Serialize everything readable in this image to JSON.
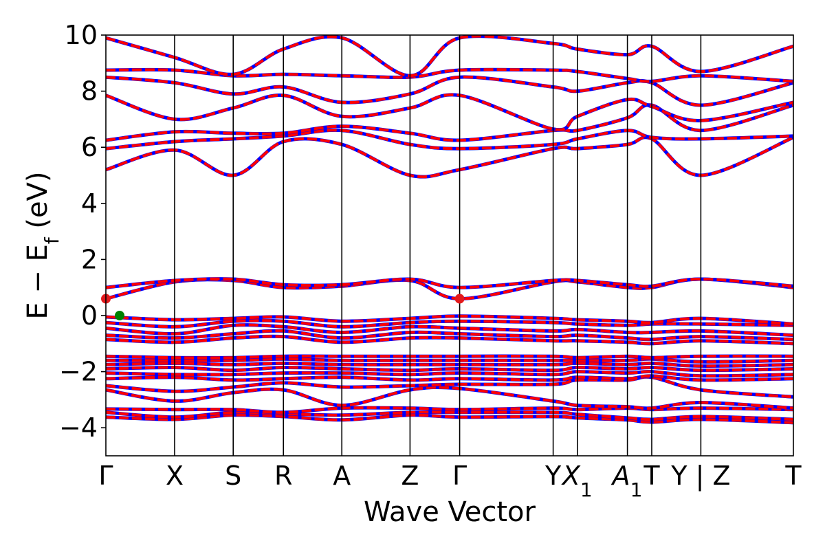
{
  "chart_data": {
    "type": "line",
    "xlabel": "Wave Vector",
    "ylabel": "E − E_f (eV)",
    "ylabel_parts": {
      "main": "E − E",
      "sub": "f",
      "unit": " (eV)"
    },
    "ylim": [
      -5,
      10
    ],
    "yticks": [
      -4,
      -2,
      0,
      2,
      4,
      6,
      8,
      10
    ],
    "ytick_labels": [
      "−4",
      "−2",
      "0",
      "2",
      "4",
      "6",
      "8",
      "10"
    ],
    "grid": false,
    "high_symmetry_points": [
      {
        "label": "Γ",
        "x": 0.0
      },
      {
        "label": "X",
        "x": 0.5
      },
      {
        "label": "S",
        "x": 0.926
      },
      {
        "label": "R",
        "x": 1.291
      },
      {
        "label": "A",
        "x": 1.716
      },
      {
        "label": "Z",
        "x": 2.212
      },
      {
        "label": "Γ",
        "x": 2.573
      },
      {
        "label": "Y",
        "x": 3.253
      },
      {
        "label": "X",
        "sub": "1",
        "x": 3.429
      },
      {
        "label": "A",
        "sub": "1",
        "x": 3.793
      },
      {
        "label": "T",
        "x": 3.97
      },
      {
        "label": "Y | Z",
        "x": 4.327
      },
      {
        "label": "T",
        "x": 5.0
      }
    ],
    "series_colors": {
      "spin_up": "#ff0000",
      "spin_down": "#0000ff"
    },
    "markers": [
      {
        "name": "CBM",
        "x": 0.0,
        "y": 0.6,
        "color": "#e31a1c"
      },
      {
        "name": "CBM",
        "x": 2.573,
        "y": 0.6,
        "color": "#e31a1c"
      },
      {
        "name": "VBM",
        "x": 0.1,
        "y": 0.0,
        "color": "#008000"
      }
    ],
    "bands": [
      [
        [
          0,
          -3.62
        ],
        [
          0.5,
          -3.7
        ],
        [
          0.926,
          -3.55
        ],
        [
          1.291,
          -3.6
        ],
        [
          1.716,
          -3.72
        ],
        [
          2.212,
          -3.55
        ],
        [
          2.573,
          -3.62
        ],
        [
          3.253,
          -3.6
        ],
        [
          3.429,
          -3.65
        ],
        [
          3.793,
          -3.72
        ],
        [
          3.97,
          -3.8
        ],
        [
          4.327,
          -3.7
        ],
        [
          5.0,
          -3.82
        ]
      ],
      [
        [
          0,
          -3.45
        ],
        [
          0.5,
          -3.62
        ],
        [
          0.926,
          -3.45
        ],
        [
          1.291,
          -3.5
        ],
        [
          1.716,
          -3.55
        ],
        [
          2.212,
          -3.45
        ],
        [
          2.573,
          -3.45
        ],
        [
          3.253,
          -3.45
        ],
        [
          3.429,
          -3.52
        ],
        [
          3.793,
          -3.65
        ],
        [
          3.97,
          -3.7
        ],
        [
          4.327,
          -3.6
        ],
        [
          5.0,
          -3.7
        ]
      ],
      [
        [
          0,
          -3.33
        ],
        [
          0.5,
          -3.35
        ],
        [
          0.926,
          -3.35
        ],
        [
          1.291,
          -3.45
        ],
        [
          1.716,
          -3.3
        ],
        [
          2.212,
          -3.3
        ],
        [
          2.573,
          -3.35
        ],
        [
          3.253,
          -3.3
        ],
        [
          3.429,
          -3.35
        ],
        [
          3.793,
          -3.3
        ],
        [
          3.97,
          -3.35
        ],
        [
          4.327,
          -3.3
        ],
        [
          5.0,
          -3.35
        ]
      ],
      [
        [
          0,
          -2.65
        ],
        [
          0.5,
          -3.05
        ],
        [
          0.926,
          -2.75
        ],
        [
          1.291,
          -2.65
        ],
        [
          1.716,
          -3.2
        ],
        [
          2.212,
          -2.65
        ],
        [
          2.573,
          -2.6
        ],
        [
          3.253,
          -3.05
        ],
        [
          3.429,
          -3.2
        ],
        [
          3.793,
          -3.25
        ],
        [
          3.97,
          -3.3
        ],
        [
          4.327,
          -3.1
        ],
        [
          5.0,
          -3.3
        ]
      ],
      [
        [
          0,
          -2.5
        ],
        [
          0.5,
          -2.7
        ],
        [
          0.926,
          -2.55
        ],
        [
          1.291,
          -2.4
        ],
        [
          1.716,
          -2.55
        ],
        [
          2.212,
          -2.5
        ],
        [
          2.573,
          -2.45
        ],
        [
          3.253,
          -2.45
        ],
        [
          3.429,
          -2.3
        ],
        [
          3.793,
          -2.3
        ],
        [
          3.97,
          -2.2
        ],
        [
          4.327,
          -2.65
        ],
        [
          5.0,
          -2.9
        ]
      ],
      [
        [
          0,
          -2.25
        ],
        [
          0.5,
          -2.2
        ],
        [
          0.926,
          -2.3
        ],
        [
          1.291,
          -2.25
        ],
        [
          1.716,
          -2.2
        ],
        [
          2.212,
          -2.3
        ],
        [
          2.573,
          -2.25
        ],
        [
          3.253,
          -2.3
        ],
        [
          3.429,
          -2.2
        ],
        [
          3.793,
          -2.25
        ],
        [
          3.97,
          -2.15
        ],
        [
          4.327,
          -2.3
        ],
        [
          5.0,
          -2.25
        ]
      ],
      [
        [
          0,
          -2.05
        ],
        [
          0.5,
          -2.1
        ],
        [
          0.926,
          -2.1
        ],
        [
          1.291,
          -2.05
        ],
        [
          1.716,
          -2.05
        ],
        [
          2.212,
          -2.1
        ],
        [
          2.573,
          -2.05
        ],
        [
          3.253,
          -2.1
        ],
        [
          3.429,
          -2.0
        ],
        [
          3.793,
          -2.05
        ],
        [
          3.97,
          -2.0
        ],
        [
          4.327,
          -2.15
        ],
        [
          5.0,
          -2.1
        ]
      ],
      [
        [
          0,
          -1.9
        ],
        [
          0.5,
          -1.85
        ],
        [
          0.926,
          -1.95
        ],
        [
          1.291,
          -1.85
        ],
        [
          1.716,
          -1.9
        ],
        [
          2.212,
          -1.95
        ],
        [
          2.573,
          -1.9
        ],
        [
          3.253,
          -1.95
        ],
        [
          3.429,
          -1.85
        ],
        [
          3.793,
          -1.9
        ],
        [
          3.97,
          -1.85
        ],
        [
          4.327,
          -1.95
        ],
        [
          5.0,
          -1.9
        ]
      ],
      [
        [
          0,
          -1.75
        ],
        [
          0.5,
          -1.7
        ],
        [
          0.926,
          -1.75
        ],
        [
          1.291,
          -1.7
        ],
        [
          1.716,
          -1.75
        ],
        [
          2.212,
          -1.75
        ],
        [
          2.573,
          -1.75
        ],
        [
          3.253,
          -1.75
        ],
        [
          3.429,
          -1.7
        ],
        [
          3.793,
          -1.75
        ],
        [
          3.97,
          -1.7
        ],
        [
          4.327,
          -1.8
        ],
        [
          5.0,
          -1.75
        ]
      ],
      [
        [
          0,
          -1.6
        ],
        [
          0.5,
          -1.6
        ],
        [
          0.926,
          -1.6
        ],
        [
          1.291,
          -1.55
        ],
        [
          1.716,
          -1.6
        ],
        [
          2.212,
          -1.6
        ],
        [
          2.573,
          -1.6
        ],
        [
          3.253,
          -1.6
        ],
        [
          3.429,
          -1.6
        ],
        [
          3.793,
          -1.6
        ],
        [
          3.97,
          -1.55
        ],
        [
          4.327,
          -1.65
        ],
        [
          5.0,
          -1.6
        ]
      ],
      [
        [
          0,
          -1.45
        ],
        [
          0.5,
          -1.5
        ],
        [
          0.926,
          -1.5
        ],
        [
          1.291,
          -1.45
        ],
        [
          1.716,
          -1.45
        ],
        [
          2.212,
          -1.45
        ],
        [
          2.573,
          -1.45
        ],
        [
          3.253,
          -1.45
        ],
        [
          3.429,
          -1.5
        ],
        [
          3.793,
          -1.45
        ],
        [
          3.97,
          -1.5
        ],
        [
          4.327,
          -1.45
        ],
        [
          5.0,
          -1.45
        ]
      ],
      [
        [
          0,
          -0.85
        ],
        [
          0.5,
          -0.95
        ],
        [
          0.926,
          -0.8
        ],
        [
          1.291,
          -0.75
        ],
        [
          1.716,
          -0.95
        ],
        [
          2.212,
          -0.8
        ],
        [
          2.573,
          -0.8
        ],
        [
          3.253,
          -0.9
        ],
        [
          3.429,
          -0.9
        ],
        [
          3.793,
          -0.95
        ],
        [
          3.97,
          -1.0
        ],
        [
          4.327,
          -0.9
        ],
        [
          5.0,
          -1.0
        ]
      ],
      [
        [
          0,
          -0.7
        ],
        [
          0.5,
          -0.8
        ],
        [
          0.926,
          -0.65
        ],
        [
          1.291,
          -0.55
        ],
        [
          1.716,
          -0.8
        ],
        [
          2.212,
          -0.6
        ],
        [
          2.573,
          -0.65
        ],
        [
          3.253,
          -0.75
        ],
        [
          3.429,
          -0.7
        ],
        [
          3.793,
          -0.8
        ],
        [
          3.97,
          -0.85
        ],
        [
          4.327,
          -0.75
        ],
        [
          5.0,
          -0.85
        ]
      ],
      [
        [
          0,
          -0.45
        ],
        [
          0.5,
          -0.65
        ],
        [
          0.926,
          -0.35
        ],
        [
          1.291,
          -0.4
        ],
        [
          1.716,
          -0.6
        ],
        [
          2.212,
          -0.4
        ],
        [
          2.573,
          -0.45
        ],
        [
          3.253,
          -0.55
        ],
        [
          3.429,
          -0.5
        ],
        [
          3.793,
          -0.6
        ],
        [
          3.97,
          -0.6
        ],
        [
          4.327,
          -0.55
        ],
        [
          5.0,
          -0.7
        ]
      ],
      [
        [
          0,
          -0.25
        ],
        [
          0.5,
          -0.4
        ],
        [
          0.926,
          -0.2
        ],
        [
          1.291,
          -0.2
        ],
        [
          1.716,
          -0.4
        ],
        [
          2.212,
          -0.25
        ],
        [
          2.573,
          -0.2
        ],
        [
          3.253,
          -0.25
        ],
        [
          3.429,
          -0.3
        ],
        [
          3.793,
          -0.35
        ],
        [
          3.97,
          -0.3
        ],
        [
          4.327,
          -0.3
        ],
        [
          5.0,
          -0.35
        ]
      ],
      [
        [
          0,
          -0.05
        ],
        [
          0.5,
          -0.15
        ],
        [
          0.926,
          -0.1
        ],
        [
          1.291,
          -0.05
        ],
        [
          1.716,
          -0.2
        ],
        [
          2.212,
          -0.1
        ],
        [
          2.573,
          -0.02
        ],
        [
          3.253,
          -0.1
        ],
        [
          3.429,
          -0.15
        ],
        [
          3.793,
          -0.2
        ],
        [
          3.97,
          -0.25
        ],
        [
          4.327,
          -0.1
        ],
        [
          5.0,
          -0.3
        ]
      ],
      [
        [
          0,
          0.6
        ],
        [
          0.5,
          1.2
        ],
        [
          0.926,
          1.25
        ],
        [
          1.291,
          1.0
        ],
        [
          1.716,
          1.05
        ],
        [
          2.212,
          1.25
        ],
        [
          2.573,
          0.6
        ],
        [
          3.253,
          1.2
        ],
        [
          3.429,
          1.2
        ],
        [
          3.793,
          1.0
        ],
        [
          3.97,
          1.0
        ],
        [
          4.327,
          1.3
        ],
        [
          5.0,
          1.0
        ]
      ],
      [
        [
          0,
          1.0
        ],
        [
          0.5,
          1.25
        ],
        [
          0.926,
          1.3
        ],
        [
          1.291,
          1.1
        ],
        [
          1.716,
          1.1
        ],
        [
          2.212,
          1.3
        ],
        [
          2.573,
          1.0
        ],
        [
          3.253,
          1.25
        ],
        [
          3.429,
          1.25
        ],
        [
          3.793,
          1.1
        ],
        [
          3.97,
          1.05
        ],
        [
          4.327,
          1.3
        ],
        [
          5.0,
          1.05
        ]
      ],
      [
        [
          0,
          5.2
        ],
        [
          0.5,
          5.9
        ],
        [
          0.926,
          5.0
        ],
        [
          1.291,
          6.2
        ],
        [
          1.716,
          6.1
        ],
        [
          2.212,
          5.0
        ],
        [
          2.573,
          5.2
        ],
        [
          3.253,
          5.95
        ],
        [
          3.429,
          5.95
        ],
        [
          3.793,
          6.1
        ],
        [
          3.97,
          6.3
        ],
        [
          4.327,
          5.0
        ],
        [
          5.0,
          6.35
        ]
      ],
      [
        [
          0,
          5.95
        ],
        [
          0.5,
          6.2
        ],
        [
          0.926,
          6.3
        ],
        [
          1.291,
          6.4
        ],
        [
          1.716,
          6.6
        ],
        [
          2.212,
          6.1
        ],
        [
          2.573,
          5.95
        ],
        [
          3.253,
          6.1
        ],
        [
          3.429,
          6.3
        ],
        [
          3.793,
          6.6
        ],
        [
          3.97,
          6.35
        ],
        [
          4.327,
          6.3
        ],
        [
          5.0,
          6.4
        ]
      ],
      [
        [
          0,
          6.25
        ],
        [
          0.5,
          6.55
        ],
        [
          0.926,
          6.5
        ],
        [
          1.291,
          6.5
        ],
        [
          1.716,
          6.75
        ],
        [
          2.212,
          6.5
        ],
        [
          2.573,
          6.25
        ],
        [
          3.253,
          6.6
        ],
        [
          3.429,
          6.6
        ],
        [
          3.793,
          7.05
        ],
        [
          3.97,
          7.5
        ],
        [
          4.327,
          6.6
        ],
        [
          5.0,
          7.5
        ]
      ],
      [
        [
          0,
          7.85
        ],
        [
          0.5,
          7.0
        ],
        [
          0.926,
          7.4
        ],
        [
          1.291,
          7.85
        ],
        [
          1.716,
          7.1
        ],
        [
          2.212,
          7.4
        ],
        [
          2.573,
          7.85
        ],
        [
          3.253,
          6.65
        ],
        [
          3.429,
          7.1
        ],
        [
          3.793,
          7.7
        ],
        [
          3.97,
          7.45
        ],
        [
          4.327,
          6.95
        ],
        [
          5.0,
          7.6
        ]
      ],
      [
        [
          0,
          8.5
        ],
        [
          0.5,
          8.3
        ],
        [
          0.926,
          7.9
        ],
        [
          1.291,
          8.15
        ],
        [
          1.716,
          7.6
        ],
        [
          2.212,
          7.9
        ],
        [
          2.573,
          8.5
        ],
        [
          3.253,
          8.15
        ],
        [
          3.429,
          8.0
        ],
        [
          3.793,
          8.3
        ],
        [
          3.97,
          8.3
        ],
        [
          4.327,
          7.5
        ],
        [
          5.0,
          8.3
        ]
      ],
      [
        [
          0,
          8.75
        ],
        [
          0.5,
          8.75
        ],
        [
          0.926,
          8.55
        ],
        [
          1.291,
          8.6
        ],
        [
          1.716,
          8.55
        ],
        [
          2.212,
          8.5
        ],
        [
          2.573,
          8.75
        ],
        [
          3.253,
          8.75
        ],
        [
          3.429,
          8.7
        ],
        [
          3.793,
          8.45
        ],
        [
          3.97,
          8.35
        ],
        [
          4.327,
          8.55
        ],
        [
          5.0,
          8.35
        ]
      ],
      [
        [
          0,
          9.9
        ],
        [
          0.5,
          9.2
        ],
        [
          0.926,
          8.6
        ],
        [
          1.291,
          9.5
        ],
        [
          1.716,
          9.9
        ],
        [
          2.212,
          8.55
        ],
        [
          2.573,
          9.9
        ],
        [
          3.253,
          9.7
        ],
        [
          3.429,
          9.5
        ],
        [
          3.793,
          9.3
        ],
        [
          3.97,
          9.6
        ],
        [
          4.327,
          8.7
        ],
        [
          5.0,
          9.6
        ]
      ]
    ]
  }
}
